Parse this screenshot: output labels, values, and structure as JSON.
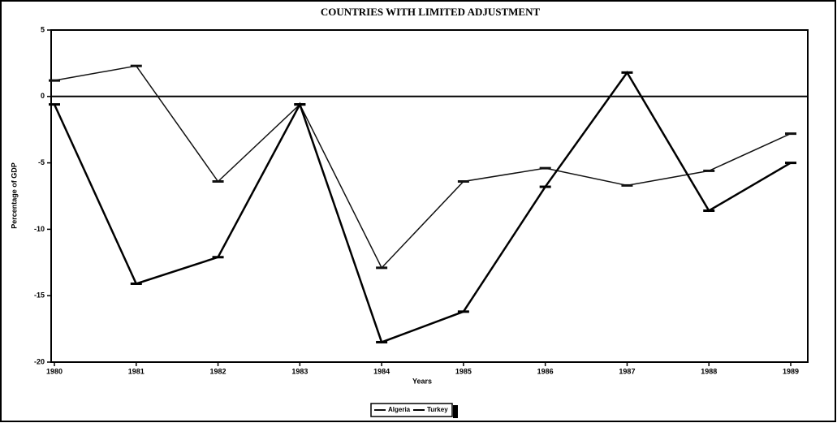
{
  "chart_data": {
    "type": "line",
    "title": "COUNTRIES WITH LIMITED ADJUSTMENT",
    "x_label": "Years",
    "y_label": "Percentage of GDP",
    "categories": [
      "1980",
      "1981",
      "1982",
      "1983",
      "1984",
      "1985",
      "1986",
      "1987",
      "1988",
      "1989"
    ],
    "series": [
      {
        "name": "Algeria",
        "color": "#111111",
        "values": [
          1.2,
          2.3,
          -6.4,
          -0.6,
          -12.9,
          -6.4,
          -5.4,
          -6.7,
          -5.6,
          -2.8
        ]
      },
      {
        "name": "Turkey",
        "color": "#000000",
        "values": [
          -0.6,
          -14.1,
          -12.1,
          -0.6,
          -18.5,
          -16.2,
          -6.8,
          1.8,
          -8.6,
          -5.0
        ]
      }
    ],
    "ylim": [
      -20,
      5
    ],
    "yticks": [
      5,
      0,
      -5,
      -10,
      -15,
      -20
    ]
  }
}
